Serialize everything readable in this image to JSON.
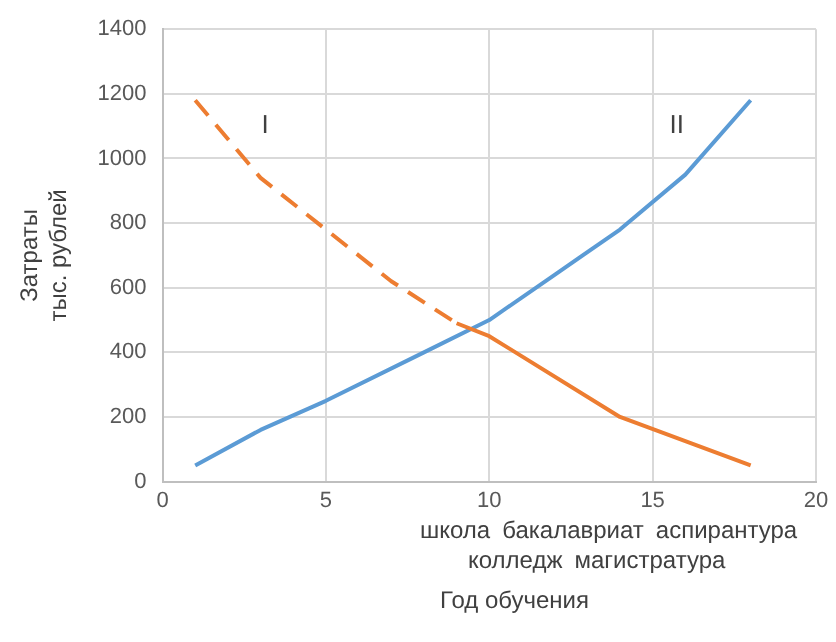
{
  "chart_data": {
    "type": "line",
    "xlabel": "Год обучения",
    "ylabel": "Затраты\nтыс. рублей",
    "xlim": [
      0,
      20
    ],
    "xticks": [
      0,
      5,
      10,
      15,
      20
    ],
    "ylim": [
      0,
      1400
    ],
    "yticks": [
      0,
      200,
      400,
      600,
      800,
      1000,
      1200,
      1400
    ],
    "grid": true,
    "legend": false,
    "marker": "none",
    "series": [
      {
        "name": "I",
        "color": "#ed7d31",
        "line_style": "dashed",
        "x": [
          1,
          3,
          5,
          7,
          9
        ],
        "values": [
          1180,
          940,
          780,
          620,
          490
        ]
      },
      {
        "color": "#ed7d31",
        "line_style": "solid",
        "x": [
          9,
          10,
          14,
          18
        ],
        "values": [
          490,
          450,
          200,
          50
        ]
      },
      {
        "name": "II",
        "color": "#5b9bd5",
        "line_style": "solid",
        "x": [
          1,
          3,
          5,
          8,
          10,
          12,
          14,
          16,
          18
        ],
        "values": [
          50,
          160,
          250,
          400,
          500,
          640,
          780,
          950,
          1180
        ]
      }
    ],
    "annotations": [
      "школа",
      "бакалавриат",
      "аспирантура",
      "колледж",
      "магистратура"
    ]
  }
}
